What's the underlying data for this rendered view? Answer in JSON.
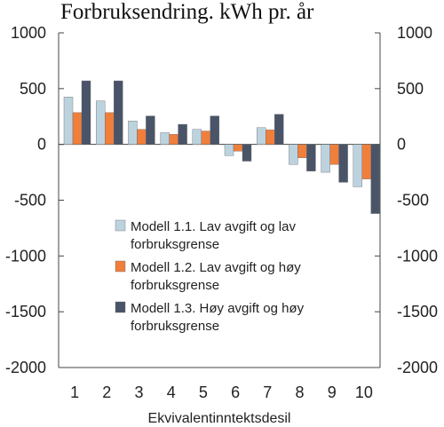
{
  "chart_data": {
    "type": "bar",
    "title": "Forbruksendring. kWh pr. år",
    "xlabel": "Ekvivalentinntektsdesil",
    "ylabel": "",
    "categories": [
      "1",
      "2",
      "3",
      "4",
      "5",
      "6",
      "7",
      "8",
      "9",
      "10"
    ],
    "ylim": [
      -2000,
      1000
    ],
    "yticks": [
      1000,
      500,
      0,
      -500,
      -1000,
      -1500,
      -2000
    ],
    "ytick_labels": [
      "1000",
      "500",
      "0",
      "-500",
      "-1000",
      "-1500",
      "-2000"
    ],
    "grid": false,
    "legend_position": "center-left",
    "series": [
      {
        "name": "Modell 1.1. Lav avgift og lav forbruksgrense",
        "legend_lines": [
          "Modell 1.1. Lav avgift og lav",
          "forbruksgrense"
        ],
        "color": "#bcd3df",
        "values": [
          425,
          390,
          210,
          105,
          135,
          -100,
          150,
          -180,
          -250,
          -380
        ]
      },
      {
        "name": "Modell 1.2. Lav avgift og høy forbruksgrense",
        "legend_lines": [
          "Modell 1.2. Lav avgift og høy",
          "forbruksgrense"
        ],
        "color": "#f07f3c",
        "values": [
          285,
          285,
          135,
          90,
          120,
          -60,
          130,
          -120,
          -180,
          -310
        ]
      },
      {
        "name": "Modell 1.3. Høy avgift og høy forbruksgrense",
        "legend_lines": [
          "Modell 1.3. Høy avgift og høy",
          "forbruksgrense"
        ],
        "color": "#4a5468",
        "values": [
          570,
          570,
          255,
          180,
          255,
          -150,
          270,
          -240,
          -340,
          -620
        ]
      }
    ]
  }
}
